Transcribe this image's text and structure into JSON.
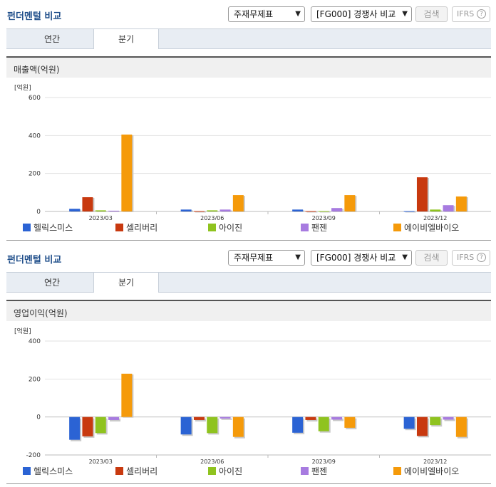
{
  "sections": [
    {
      "title": "펀더멘털 비교",
      "select1": "주재무제표",
      "select2": "[FG000] 경쟁사 비교",
      "search_label": "검색",
      "ifrs_label": "IFRS",
      "help_label": "?",
      "tabs": [
        "연간",
        "분기"
      ],
      "active_tab": "분기"
    },
    {
      "title": "펀더멘털 비교",
      "select1": "주재무제표",
      "select2": "[FG000] 경쟁사 비교",
      "search_label": "검색",
      "ifrs_label": "IFRS",
      "help_label": "?",
      "tabs": [
        "연간",
        "분기"
      ],
      "active_tab": "분기"
    }
  ],
  "chart_data": [
    {
      "type": "bar",
      "title": "매출액(억원)",
      "unit": "[억원]",
      "categories": [
        "2023/03",
        "2023/06",
        "2023/09",
        "2023/12"
      ],
      "ylim": [
        0,
        600
      ],
      "yticks": [
        0,
        200,
        400,
        600
      ],
      "series": [
        {
          "name": "헬릭스미스",
          "color": "#2b63d4",
          "values": [
            14,
            10,
            10,
            2
          ]
        },
        {
          "name": "셀리버리",
          "color": "#c8390f",
          "values": [
            75,
            2,
            2,
            180
          ]
        },
        {
          "name": "아이진",
          "color": "#8fc31f",
          "values": [
            6,
            6,
            2,
            10
          ]
        },
        {
          "name": "팬젠",
          "color": "#a77be0",
          "values": [
            4,
            10,
            18,
            33
          ]
        },
        {
          "name": "에이비엘바이오",
          "color": "#f59a0a",
          "values": [
            405,
            86,
            86,
            79
          ]
        }
      ]
    },
    {
      "type": "bar",
      "title": "영업이익(억원)",
      "unit": "[억원]",
      "categories": [
        "2023/03",
        "2023/06",
        "2023/09",
        "2023/12"
      ],
      "ylim": [
        -200,
        400
      ],
      "yticks": [
        -200,
        0,
        200,
        400
      ],
      "series": [
        {
          "name": "헬릭스미스",
          "color": "#2b63d4",
          "values": [
            -120,
            -92,
            -83,
            -62
          ]
        },
        {
          "name": "셀리버리",
          "color": "#c8390f",
          "values": [
            -102,
            -16,
            -16,
            -100
          ]
        },
        {
          "name": "아이진",
          "color": "#8fc31f",
          "values": [
            -85,
            -85,
            -75,
            -43
          ]
        },
        {
          "name": "팬젠",
          "color": "#a77be0",
          "values": [
            -16,
            -8,
            -14,
            -14
          ]
        },
        {
          "name": "에이비엘바이오",
          "color": "#f59a0a",
          "values": [
            228,
            -105,
            -57,
            -105
          ]
        }
      ]
    }
  ]
}
